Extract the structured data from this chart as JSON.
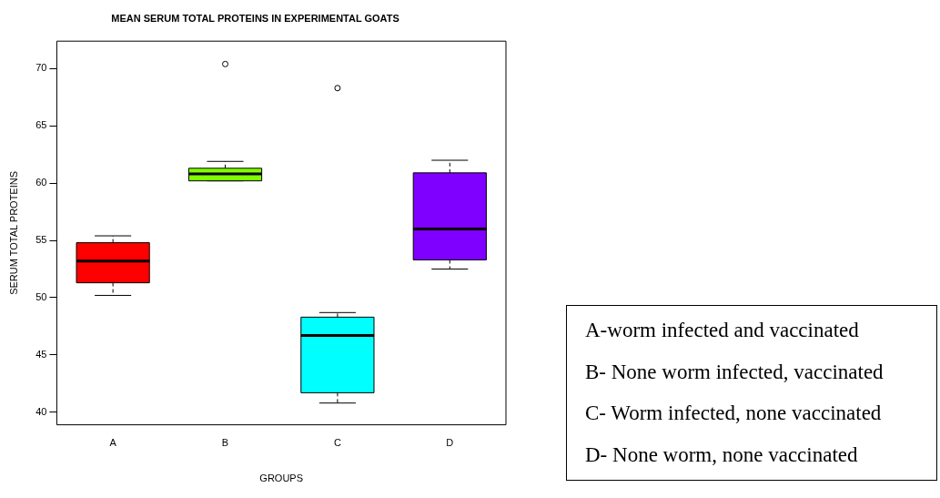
{
  "chart_data": {
    "type": "box",
    "title": "MEAN SERUM TOTAL PROTEINS IN EXPERIMENTAL GOATS",
    "xlabel": "GROUPS",
    "ylabel": "SERUM TOTAL PROTEINS",
    "categories": [
      "A",
      "B",
      "C",
      "D"
    ],
    "colors": [
      "#ff0000",
      "#80ff00",
      "#00ffff",
      "#8000ff"
    ],
    "boxes": [
      {
        "low": 50.2,
        "q1": 51.3,
        "median": 53.2,
        "q3": 54.8,
        "high": 55.4
      },
      {
        "low": 60.2,
        "q1": 60.2,
        "median": 60.8,
        "q3": 61.3,
        "high": 61.9,
        "outliers": [
          70.4
        ]
      },
      {
        "low": 40.8,
        "q1": 41.7,
        "median": 46.7,
        "q3": 48.3,
        "high": 48.7,
        "outliers": [
          68.3
        ]
      },
      {
        "low": 52.5,
        "q1": 53.3,
        "median": 56.0,
        "q3": 60.9,
        "high": 62.0
      }
    ],
    "ylim": [
      38.9,
      72.4
    ],
    "yticks": [
      40,
      45,
      50,
      55,
      60,
      65,
      70
    ],
    "grid": false,
    "legend": false,
    "annotations": [
      "A-worm infected and vaccinated",
      "B- None worm infected, vaccinated",
      "C- Worm infected, none vaccinated",
      "D- None worm, none vaccinated"
    ]
  }
}
